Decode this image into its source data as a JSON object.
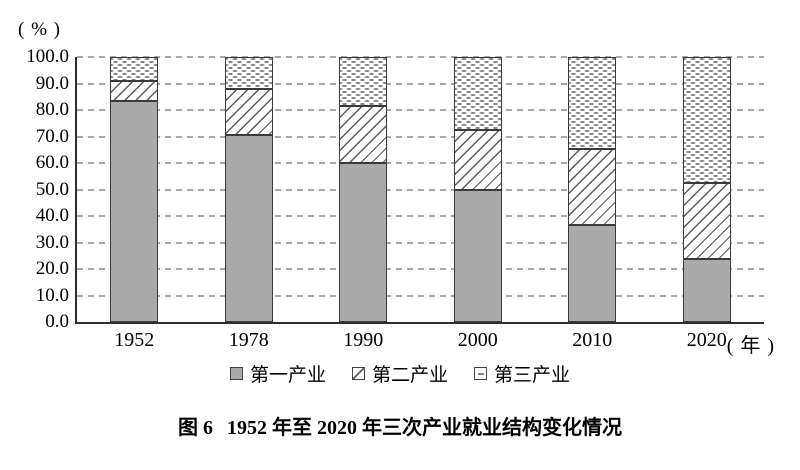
{
  "caption": {
    "prefix": "图 6",
    "text": "1952 年至 2020 年三次产业就业结构变化情况"
  },
  "chart_data": {
    "type": "bar",
    "stacked": true,
    "title": "图 6 1952 年至 2020 年三次产业就业结构变化情况",
    "y_unit_label": "( % )",
    "x_suffix_label": "( 年 )",
    "xlabel": "年",
    "ylabel": "%",
    "categories": [
      "1952",
      "1978",
      "1990",
      "2000",
      "2010",
      "2020"
    ],
    "series": [
      {
        "name": "第一产业",
        "pattern": "solid-gray",
        "values": [
          83.5,
          70.5,
          60.1,
          50.0,
          36.7,
          23.6
        ]
      },
      {
        "name": "第二产业",
        "pattern": "diagonal-hatch",
        "values": [
          7.4,
          17.3,
          21.4,
          22.5,
          28.7,
          28.7
        ]
      },
      {
        "name": "第三产业",
        "pattern": "dashed-dots",
        "values": [
          9.1,
          12.2,
          18.5,
          27.5,
          34.6,
          47.7
        ]
      }
    ],
    "ylim": [
      0,
      100
    ],
    "y_ticks": [
      0,
      10,
      20,
      30,
      40,
      50,
      60,
      70,
      80,
      90,
      100
    ],
    "y_tick_labels": [
      "0.0",
      "10.0",
      "20.0",
      "30.0",
      "40.0",
      "50.0",
      "60.0",
      "70.0",
      "80.0",
      "90.0",
      "100.0"
    ],
    "grid": "dashed-horizontal",
    "legend_position": "bottom",
    "colors": {
      "primary_fill": "#a9a9a9",
      "bar_border": "#3a3a3a",
      "hatch_line": "#5a5a5a",
      "dot_dash": "#868686",
      "gridline": "#a6a6a6",
      "axis": "#2e2e2e",
      "text": "#000000",
      "background": "#ffffff"
    }
  }
}
